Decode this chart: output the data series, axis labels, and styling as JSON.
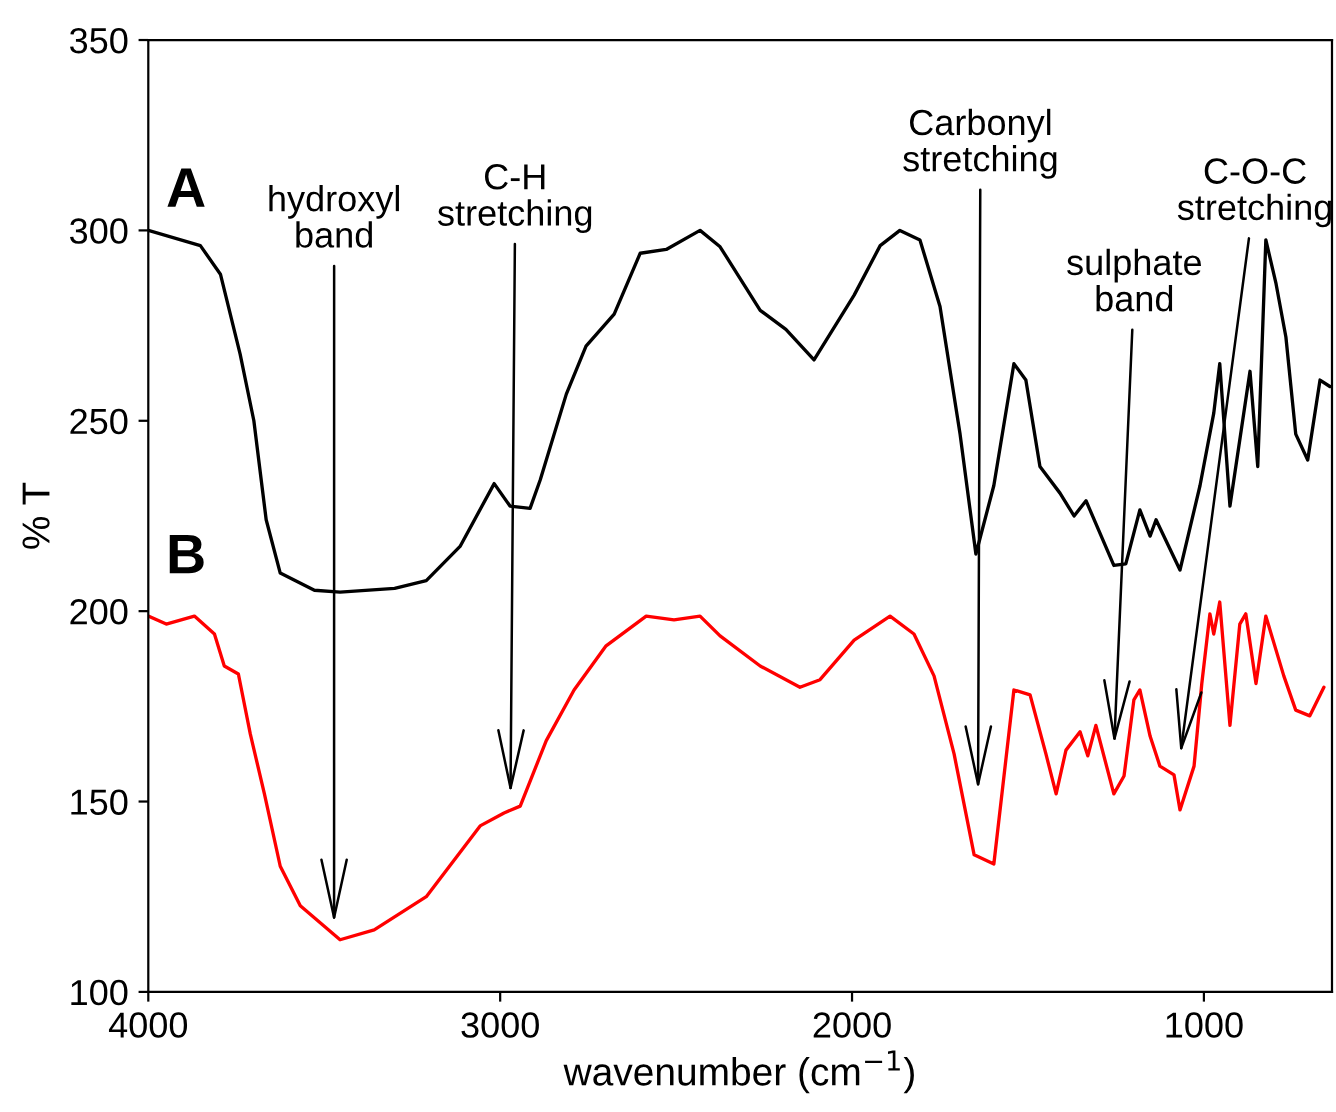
{
  "chart_data": {
    "type": "line",
    "xlabel": "wavenumber (cm$^{−1}$)",
    "ylabel": "% T",
    "xlim": [
      4000,
      636
    ],
    "ylim": [
      100,
      350
    ],
    "xticks": [
      4000,
      3000,
      2000,
      1000
    ],
    "yticks": [
      100,
      150,
      200,
      250,
      300,
      350
    ],
    "grid": false,
    "legend": false,
    "marker": "none",
    "line_style": "solid",
    "series": [
      {
        "name": "A",
        "color": "#000000",
        "x": [
          4000,
          3852,
          3795,
          3739,
          3700,
          3665,
          3625,
          3528,
          3455,
          3300,
          3210,
          3114,
          3017,
          2972,
          2915,
          2886,
          2812,
          2756,
          2676,
          2602,
          2528,
          2432,
          2375,
          2261,
          2188,
          2108,
          1994,
          1920,
          1864,
          1807,
          1750,
          1693,
          1648,
          1597,
          1540,
          1506,
          1466,
          1409,
          1369,
          1335,
          1256,
          1222,
          1182,
          1153,
          1136,
          1068,
          1011,
          972,
          955,
          926,
          869,
          847,
          824,
          795,
          767,
          739,
          705,
          670,
          642
        ],
        "values": [
          300,
          296,
          288.5,
          267.5,
          250,
          224,
          210,
          205.5,
          205,
          206,
          208,
          217,
          233.5,
          227.6,
          227,
          234.5,
          257,
          269.6,
          278,
          294,
          295,
          300,
          295.7,
          279,
          274,
          266,
          283,
          296,
          300,
          297.5,
          280,
          246.5,
          215,
          233,
          265,
          260.7,
          238,
          231,
          225,
          229,
          212,
          212.4,
          226.6,
          219.7,
          224,
          210.8,
          233,
          252,
          265,
          227.6,
          263,
          238,
          297.5,
          286,
          272,
          246.5,
          239.7,
          260.7,
          259
        ]
      },
      {
        "name": "B",
        "color": "#ff0000",
        "x": [
          4000,
          3949,
          3869,
          3812,
          3784,
          3744,
          3710,
          3670,
          3625,
          3568,
          3455,
          3358,
          3210,
          3057,
          2989,
          2943,
          2869,
          2790,
          2699,
          2585,
          2506,
          2432,
          2375,
          2261,
          2148,
          2091,
          1994,
          1892,
          1824,
          1767,
          1710,
          1653,
          1597,
          1540,
          1494,
          1449,
          1420,
          1392,
          1352,
          1330,
          1307,
          1256,
          1227,
          1199,
          1182,
          1153,
          1125,
          1085,
          1068,
          1028,
          1006,
          983,
          972,
          955,
          926,
          898,
          881,
          852,
          824,
          773,
          739,
          699,
          659
        ],
        "values": [
          198.7,
          196.6,
          198.7,
          194,
          185.6,
          183.5,
          167.7,
          152,
          133,
          122.6,
          113.7,
          116.3,
          125,
          143.6,
          147,
          148.8,
          166,
          179.3,
          190.9,
          198.7,
          197.7,
          198.7,
          193.5,
          185.6,
          180,
          182,
          192.4,
          198.7,
          194,
          183,
          162.5,
          136,
          133.6,
          179.3,
          178,
          162.5,
          152,
          163.5,
          168.3,
          162,
          170,
          152,
          156.7,
          176.7,
          179.3,
          167.2,
          159.3,
          157,
          147.8,
          159.3,
          181,
          199.3,
          194,
          202.4,
          170,
          196.6,
          199.3,
          181,
          198.7,
          183,
          174,
          172.5,
          180
        ]
      }
    ],
    "annotations": [
      {
        "text": "hydroxyl\nband",
        "x": 3472,
        "y": 118
      },
      "C-H\nstretching",
      "Carbonyl\nstretching",
      "sulphate\nband",
      "C-O-C\nstretching"
    ]
  }
}
